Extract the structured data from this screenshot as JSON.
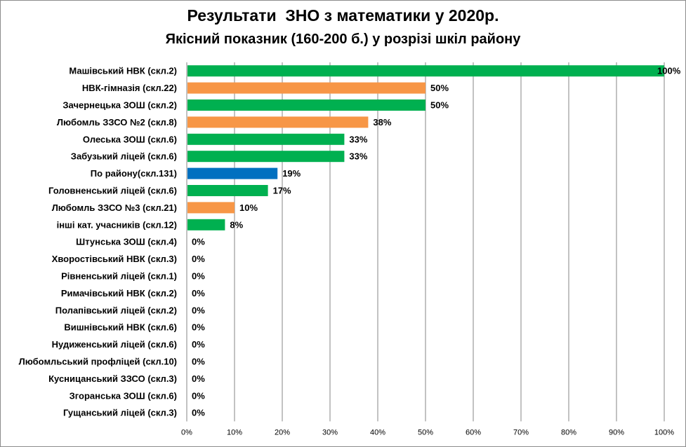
{
  "chart_data": {
    "type": "bar",
    "orientation": "horizontal",
    "title": "Результати  ЗНО з математики у 2020р.",
    "subtitle": "Якісний показник (160-200  б.) у розрізі шкіл району",
    "categories": [
      "Машівський НВК (скл.2)",
      "НВК-гімназія (скл.22)",
      "Зачернецька ЗОШ (скл.2)",
      "Любомль ЗЗСО №2 (скл.8)",
      "Олеська ЗОШ (скл.6)",
      "Забузький ліцей (скл.6)",
      "По району(скл.131)",
      "Головненський ліцей (скл.6)",
      "Любомль ЗЗСО №3 (скл.21)",
      "інші кат.  учасників (скл.12)",
      "Штунська ЗОШ (скл.4)",
      "Хворостівський НВК (скл.3)",
      "Рівненський ліцей (скл.1)",
      "Римачівський НВК (скл.2)",
      "Полапівський ліцей (скл.2)",
      "Вишнівський НВК (скл.6)",
      "Нудиженський ліцей (скл.6)",
      "Любомльський профліцей (скл.10)",
      "Кусницанський ЗЗСО (скл.3)",
      "Згоранська ЗОШ (скл.6)",
      "Гущанський ліцей (скл.3)"
    ],
    "values": [
      100,
      50,
      50,
      38,
      33,
      33,
      19,
      17,
      10,
      8,
      0,
      0,
      0,
      0,
      0,
      0,
      0,
      0,
      0,
      0,
      0
    ],
    "data_labels": [
      "100%",
      "50%",
      "50%",
      "38%",
      "33%",
      "33%",
      "19%",
      "17%",
      "10%",
      "8%",
      "0%",
      "0%",
      "0%",
      "0%",
      "0%",
      "0%",
      "0%",
      "0%",
      "0%",
      "0%",
      "0%"
    ],
    "bar_colors": [
      "#00B050",
      "#F79646",
      "#00B050",
      "#F79646",
      "#00B050",
      "#00B050",
      "#0070C0",
      "#00B050",
      "#F79646",
      "#00B050",
      "#00B050",
      "#00B050",
      "#00B050",
      "#00B050",
      "#00B050",
      "#00B050",
      "#00B050",
      "#00B050",
      "#00B050",
      "#00B050",
      "#00B050"
    ],
    "x_ticks": [
      0,
      10,
      20,
      30,
      40,
      50,
      60,
      70,
      80,
      90,
      100
    ],
    "x_tick_labels": [
      "0%",
      "10%",
      "20%",
      "30%",
      "40%",
      "50%",
      "60%",
      "70%",
      "80%",
      "90%",
      "100%"
    ],
    "xlim": [
      0,
      100
    ],
    "xlabel": "",
    "ylabel": "",
    "grid": "vertical",
    "legend": "none",
    "gridline_color": "#868686"
  }
}
